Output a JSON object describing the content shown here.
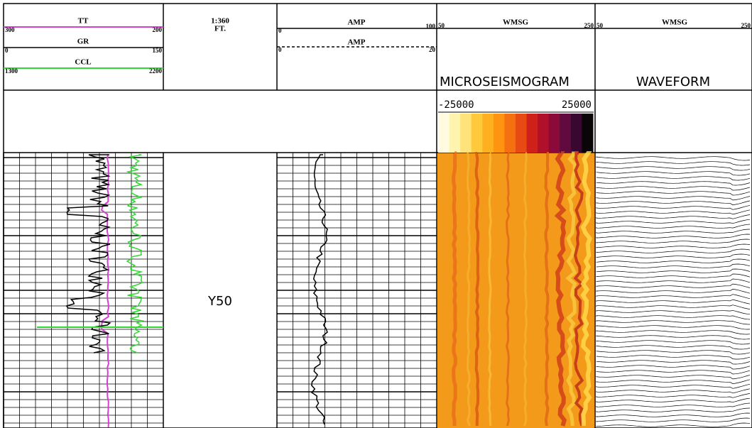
{
  "track1": {
    "curves": [
      {
        "name": "TT",
        "left": 300,
        "right": 200
      },
      {
        "name": "GR",
        "left": 0,
        "right": 150
      },
      {
        "name": "CCL",
        "left": 1300,
        "right": 2200
      }
    ]
  },
  "depth_track": {
    "scale": "1:360",
    "unit": "FT.",
    "depth_label": "Y50"
  },
  "track2": {
    "curves": [
      {
        "name": "AMP",
        "left": 0,
        "right": 100
      },
      {
        "name": "AMP",
        "left": 0,
        "right": 20
      }
    ]
  },
  "microseismogram": {
    "curve": "WMSG",
    "left": 50,
    "right": 250,
    "title": "MICROSEISMOGRAM",
    "colorbar": {
      "min": -25000,
      "max": 25000
    }
  },
  "waveform": {
    "curve": "WMSG",
    "left": 50,
    "right": 250,
    "title": "WAVEFORM"
  }
}
